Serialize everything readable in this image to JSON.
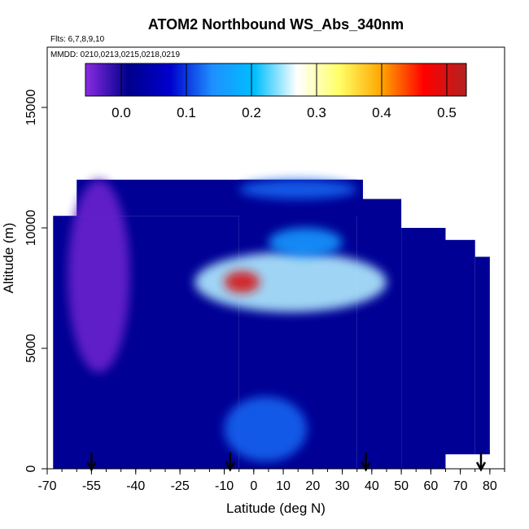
{
  "chart_data": {
    "type": "heatmap",
    "title": "ATOM2 Northbound WS_Abs_340nm",
    "flights_label": "Flts: 6,7,8,9,10",
    "mmdd_label": "MMDD: 0210,0213,0215,0218,0219",
    "xlabel": "Latitude (deg N)",
    "ylabel": "Altitude (m)",
    "xlim": [
      -70,
      85
    ],
    "ylim": [
      0,
      17500
    ],
    "x_tick_labels": [
      "-70",
      "-55",
      "-40",
      "-25",
      "-10",
      "0",
      "10",
      "20",
      "30",
      "40",
      "50",
      "60",
      "70",
      "80"
    ],
    "x_tick_values": [
      -70,
      -55,
      -40,
      -25,
      -10,
      0,
      10,
      20,
      30,
      40,
      50,
      60,
      70,
      80
    ],
    "y_tick_labels": [
      "0",
      "5000",
      "10000",
      "15000"
    ],
    "y_tick_values": [
      0,
      5000,
      10000,
      15000
    ],
    "colorbar": {
      "range": [
        -0.055,
        0.53
      ],
      "tick_labels": [
        "0.0",
        "0.1",
        "0.2",
        "0.3",
        "0.4",
        "0.5"
      ],
      "tick_values": [
        0.0,
        0.1,
        0.2,
        0.3,
        0.4,
        0.5
      ],
      "colors": [
        "#8a2be2",
        "#00008b",
        "#0000cd",
        "#1e90ff",
        "#00bfff",
        "#ffffff",
        "#ffff66",
        "#ffa500",
        "#ff0000",
        "#b22222"
      ]
    },
    "profile_markers_lat": [
      -55,
      -8,
      38,
      77
    ],
    "background_value": 0.02,
    "coverage": [
      {
        "lat": [
          -68,
          -5
        ],
        "alt": [
          0,
          10500
        ]
      },
      {
        "lat": [
          -5,
          35
        ],
        "alt": [
          0,
          12000
        ]
      },
      {
        "lat": [
          -60,
          37
        ],
        "alt": [
          10500,
          12000
        ]
      },
      {
        "lat": [
          35,
          50
        ],
        "alt": [
          0,
          11200
        ]
      },
      {
        "lat": [
          50,
          65
        ],
        "alt": [
          0,
          10000
        ]
      },
      {
        "lat": [
          65,
          75
        ],
        "alt": [
          600,
          9500
        ]
      },
      {
        "lat": [
          75,
          80
        ],
        "alt": [
          600,
          8800
        ]
      }
    ],
    "features": [
      {
        "name": "low_purple_band",
        "lat": [
          -63,
          -42
        ],
        "alt": [
          4000,
          12000
        ],
        "value": -0.04
      },
      {
        "name": "upper_plume",
        "lat": [
          -20,
          45
        ],
        "alt": [
          6500,
          9000
        ],
        "value": 0.25
      },
      {
        "name": "plume_core",
        "lat": [
          -10,
          2
        ],
        "alt": [
          7300,
          8200
        ],
        "value": 0.5
      },
      {
        "name": "upper_layer",
        "lat": [
          5,
          30
        ],
        "alt": [
          8800,
          10000
        ],
        "value": 0.15
      },
      {
        "name": "top_layer",
        "lat": [
          -5,
          35
        ],
        "alt": [
          11200,
          12000
        ],
        "value": 0.12
      },
      {
        "name": "low_layer",
        "lat": [
          -10,
          18
        ],
        "alt": [
          300,
          3000
        ],
        "value": 0.12
      }
    ]
  }
}
